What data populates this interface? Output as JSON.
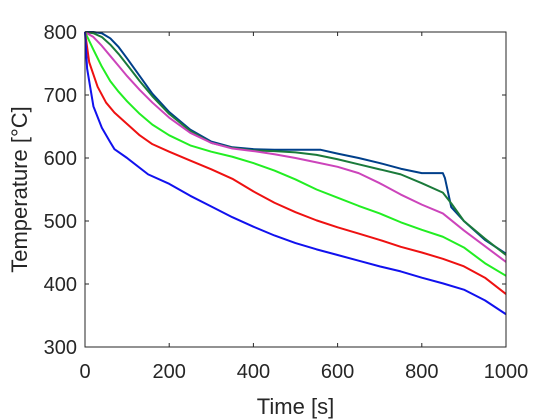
{
  "chart_data": {
    "type": "line",
    "title": "",
    "xlabel": "Time [s]",
    "ylabel": "Temperature [°C]",
    "xlim": [
      0,
      1000
    ],
    "ylim": [
      300,
      800
    ],
    "xticks": [
      0,
      200,
      400,
      600,
      800,
      1000
    ],
    "yticks": [
      300,
      400,
      500,
      600,
      700,
      800
    ],
    "grid": false,
    "legend": "none",
    "series": [
      {
        "color": "#003f8a",
        "x": [
          0,
          20,
          40,
          60,
          80,
          100,
          130,
          160,
          200,
          250,
          300,
          350,
          400,
          450,
          500,
          560,
          600,
          650,
          700,
          750,
          800,
          850,
          855,
          870,
          900,
          950,
          1000
        ],
        "y": [
          800,
          800,
          798,
          790,
          776,
          758,
          730,
          702,
          673,
          645,
          626,
          617,
          614,
          613,
          613,
          613,
          607,
          600,
          592,
          583,
          576,
          576,
          568,
          522,
          500,
          470,
          448
        ]
      },
      {
        "color": "#1a7a3a",
        "x": [
          0,
          20,
          40,
          60,
          80,
          100,
          130,
          160,
          200,
          250,
          300,
          350,
          400,
          450,
          500,
          550,
          600,
          650,
          700,
          750,
          800,
          850,
          870,
          900,
          950,
          1000
        ],
        "y": [
          800,
          798,
          792,
          780,
          765,
          748,
          722,
          698,
          670,
          643,
          624,
          616,
          612,
          611,
          609,
          605,
          598,
          590,
          582,
          574,
          560,
          545,
          528,
          500,
          472,
          446
        ]
      },
      {
        "color": "#cc44bb",
        "x": [
          0,
          20,
          40,
          60,
          80,
          100,
          130,
          160,
          200,
          250,
          300,
          350,
          400,
          450,
          500,
          550,
          600,
          650,
          700,
          750,
          800,
          850,
          900,
          950,
          1000
        ],
        "y": [
          800,
          792,
          778,
          762,
          746,
          730,
          708,
          688,
          664,
          640,
          624,
          615,
          611,
          606,
          600,
          593,
          586,
          576,
          560,
          542,
          526,
          512,
          485,
          460,
          435
        ]
      },
      {
        "color": "#22ee22",
        "x": [
          0,
          20,
          40,
          60,
          80,
          100,
          130,
          160,
          200,
          250,
          300,
          350,
          400,
          450,
          500,
          550,
          600,
          650,
          700,
          750,
          800,
          850,
          900,
          950,
          1000
        ],
        "y": [
          800,
          772,
          745,
          722,
          705,
          690,
          670,
          653,
          636,
          620,
          610,
          602,
          592,
          580,
          566,
          550,
          537,
          524,
          512,
          498,
          486,
          475,
          458,
          433,
          413
        ]
      },
      {
        "color": "#ee1111",
        "x": [
          0,
          10,
          30,
          50,
          70,
          100,
          130,
          160,
          200,
          250,
          300,
          350,
          400,
          450,
          500,
          550,
          600,
          650,
          700,
          750,
          800,
          850,
          900,
          950,
          1000
        ],
        "y": [
          800,
          752,
          713,
          688,
          672,
          654,
          636,
          622,
          610,
          596,
          582,
          567,
          547,
          529,
          514,
          501,
          490,
          480,
          470,
          459,
          450,
          440,
          428,
          410,
          384
        ]
      },
      {
        "color": "#1111ee",
        "x": [
          0,
          5,
          20,
          40,
          60,
          70,
          100,
          150,
          200,
          250,
          300,
          350,
          400,
          450,
          500,
          550,
          600,
          650,
          700,
          750,
          800,
          850,
          900,
          950,
          1000
        ],
        "y": [
          800,
          742,
          682,
          648,
          625,
          614,
          600,
          574,
          559,
          540,
          523,
          506,
          491,
          477,
          465,
          455,
          446,
          437,
          428,
          420,
          410,
          401,
          391,
          374,
          352
        ]
      }
    ]
  }
}
